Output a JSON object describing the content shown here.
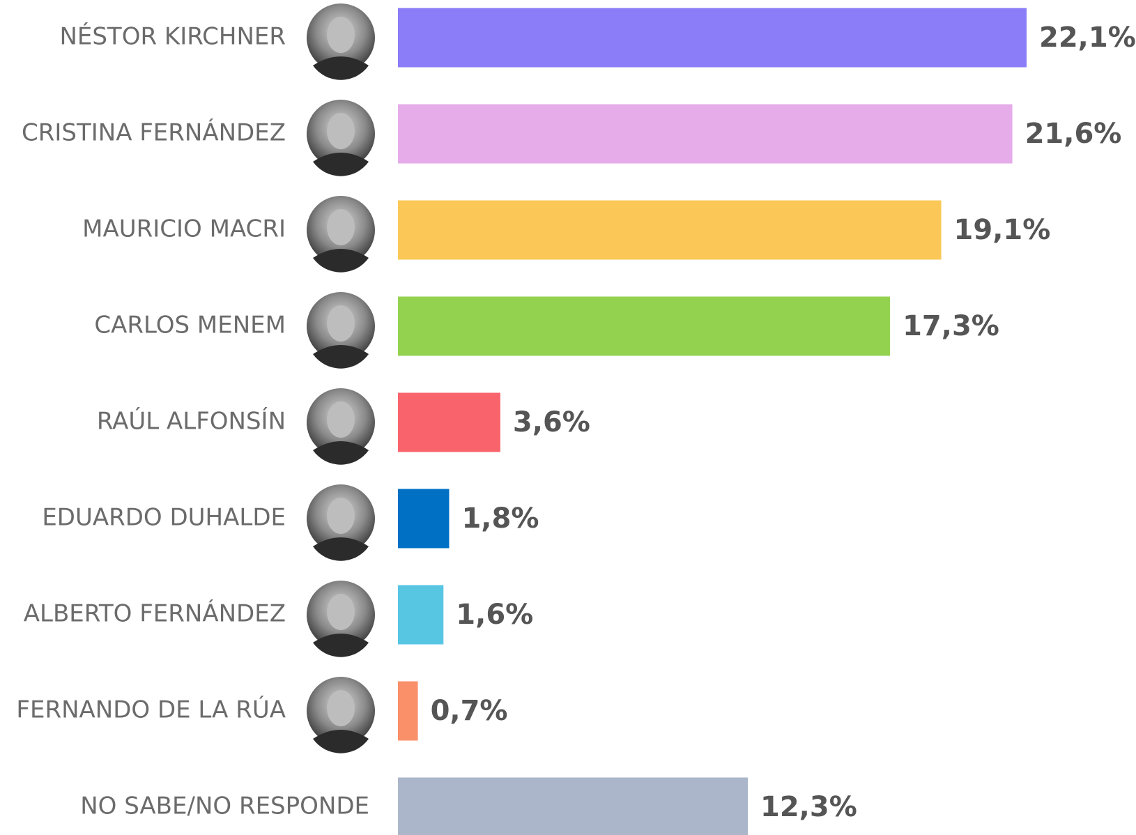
{
  "chart_data": {
    "type": "bar",
    "orientation": "horizontal",
    "categories": [
      "NÉSTOR KIRCHNER",
      "CRISTINA FERNÁNDEZ",
      "MAURICIO MACRI",
      "CARLOS MENEM",
      "RAÚL ALFONSÍN",
      "EDUARDO DUHALDE",
      "ALBERTO FERNÁNDEZ",
      "FERNANDO DE LA RÚA",
      "NO SABE/NO RESPONDE"
    ],
    "values": [
      22.1,
      21.6,
      19.1,
      17.3,
      3.6,
      1.8,
      1.6,
      0.7,
      12.3
    ],
    "value_labels": [
      "22,1%",
      "21,6%",
      "19,1%",
      "17,3%",
      "3,6%",
      "1,8%",
      "1,6%",
      "0,7%",
      "12,3%"
    ],
    "colors": [
      "#8b7cf8",
      "#e5ace9",
      "#fbc858",
      "#93d24f",
      "#f9646c",
      "#0070c4",
      "#56c6e3",
      "#f9906a",
      "#abb6ca"
    ]
  }
}
